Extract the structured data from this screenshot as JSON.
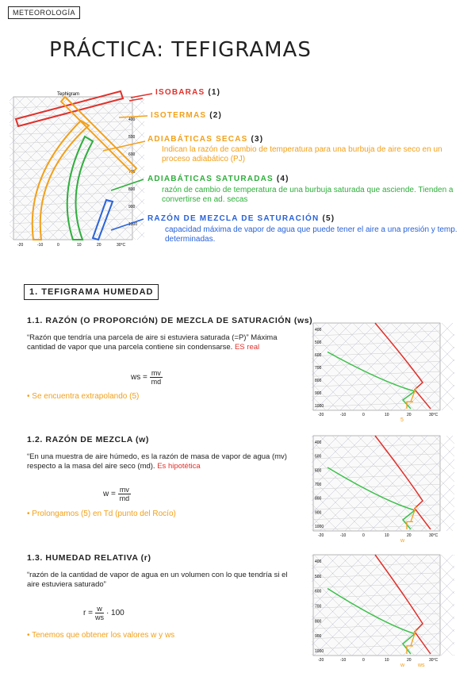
{
  "header": {
    "tag": "METEOROLOGÍA",
    "title": "PRÁCTICA: TEFIGRAMAS"
  },
  "legend": [
    {
      "label": "ISOBARAS",
      "number": "(1)"
    },
    {
      "label": "ISOTERMAS",
      "number": "(2)"
    },
    {
      "label": "ADIABÁTICAS SECAS",
      "number": "(3)",
      "description": "Indican la razón de cambio de temperatura para una burbuja de aire seco en un proceso adiabático (PJ)"
    },
    {
      "label": "ADIABÁTICAS SATURADAS",
      "number": "(4)",
      "description": "razón de cambio de temperatura de una burbuja saturada que asciende. Tienden a convertirse en ad. secas"
    },
    {
      "label": "RAZÓN DE MEZCLA DE SATURACIÓN",
      "number": "(5)",
      "description": "capacidad máxima de vapor de agua que puede tener el aire a una presión y temp. determinadas."
    }
  ],
  "section": {
    "title": "1. TEFIGRAMA HUMEDAD"
  },
  "subsections": [
    {
      "title": "1.1. RAZÓN (O PROPORCIÓN) DE MEZCLA DE SATURACIÓN (ws)",
      "quote": "“Razón que tendría una parcela de aire si estuviera saturada (=P)” Máxima cantidad de vapor que una parcela contiene sin condensarse.",
      "highlight": "ES real",
      "formula": {
        "lhs": "ws =",
        "numerator": "mv",
        "denominator": "md"
      },
      "note": "• Se encuentra extrapolando (5)",
      "annotations": [
        "5"
      ]
    },
    {
      "title": "1.2. RAZÓN DE MEZCLA (w)",
      "quote": "“En una muestra de aire húmedo, es la razón de masa de vapor de agua (mv) respecto a la masa del aire seco (md).",
      "highlight": "Es hipotética",
      "formula": {
        "lhs": "w =",
        "numerator": "mv",
        "denominator": "md"
      },
      "note": "• Prolongamos (5) en Td (punto del Rocío)",
      "annotations": [
        "w"
      ]
    },
    {
      "title": "1.3. HUMEDAD RELATIVA (r)",
      "quote": "“razón de la cantidad de vapor de agua en un volumen con lo que tendría si el aire estuviera saturado”",
      "formula": {
        "lhs": "r =",
        "numerator": "w",
        "denominator": "ws",
        "suffix": "· 100"
      },
      "note": "• Tenemos que obtener los valores w y ws",
      "annotations": [
        "w",
        "ws"
      ]
    }
  ],
  "diagram": {
    "title": "Tephigram",
    "pressure_labels": [
      "400",
      "500",
      "600",
      "700",
      "800",
      "900",
      "1000"
    ],
    "temperature_labels": [
      "-20",
      "-10",
      "0",
      "10",
      "20",
      "30°C"
    ]
  }
}
